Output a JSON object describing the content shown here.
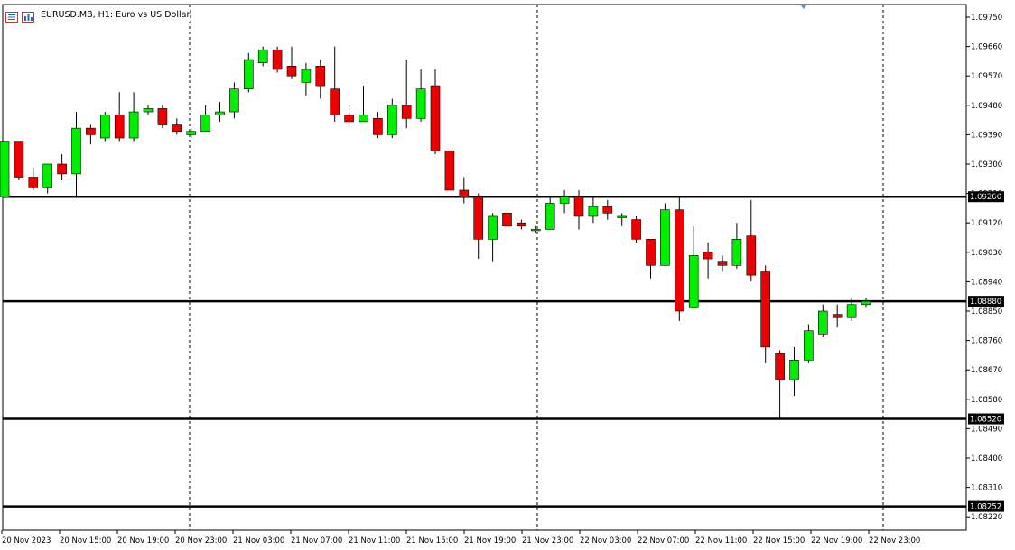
{
  "header": {
    "symbol": "EURUSD.MB, H1:",
    "description": "Euro vs US Dollar"
  },
  "chart_data": {
    "type": "candlestick",
    "symbol": "EURUSD.MB",
    "timeframe": "H1",
    "ylim": [
      1.0816,
      1.0982
    ],
    "y_ticks": [
      "1.09750",
      "1.09660",
      "1.09570",
      "1.09480",
      "1.09390",
      "1.09300",
      "1.09210",
      "1.09120",
      "1.09030",
      "1.08940",
      "1.08850",
      "1.08760",
      "1.08670",
      "1.08580",
      "1.08490",
      "1.08400",
      "1.08310",
      "1.08220"
    ],
    "x_ticks": [
      "20 Nov 2023",
      "20 Nov 15:00",
      "20 Nov 19:00",
      "20 Nov 23:00",
      "21 Nov 03:00",
      "21 Nov 07:00",
      "21 Nov 11:00",
      "21 Nov 15:00",
      "21 Nov 19:00",
      "21 Nov 23:00",
      "22 Nov 03:00",
      "22 Nov 07:00",
      "22 Nov 11:00",
      "22 Nov 15:00",
      "22 Nov 19:00",
      "22 Nov 23:00"
    ],
    "horizontal_levels": [
      {
        "value": 1.092,
        "label": "1.09200"
      },
      {
        "value": 1.0888,
        "label": "1.08880"
      },
      {
        "value": 1.0852,
        "label": "1.08520"
      },
      {
        "value": 1.08252,
        "label": "1.08252"
      }
    ],
    "colors": {
      "bull": "#00ee00",
      "bear": "#ee0000",
      "outline": "#000000",
      "level_line": "#000000"
    },
    "candles": [
      {
        "o": 1.092,
        "h": 1.0937,
        "l": 1.092,
        "c": 1.0937
      },
      {
        "o": 1.0937,
        "h": 1.0937,
        "l": 1.0925,
        "c": 1.0926
      },
      {
        "o": 1.0926,
        "h": 1.0929,
        "l": 1.0922,
        "c": 1.0923
      },
      {
        "o": 1.0923,
        "h": 1.093,
        "l": 1.0921,
        "c": 1.093
      },
      {
        "o": 1.093,
        "h": 1.0933,
        "l": 1.0925,
        "c": 1.0927
      },
      {
        "o": 1.0927,
        "h": 1.0946,
        "l": 1.092,
        "c": 1.0941
      },
      {
        "o": 1.0941,
        "h": 1.0942,
        "l": 1.0936,
        "c": 1.0939
      },
      {
        "o": 1.0938,
        "h": 1.0946,
        "l": 1.0937,
        "c": 1.0945
      },
      {
        "o": 1.0945,
        "h": 1.0952,
        "l": 1.0937,
        "c": 1.0938
      },
      {
        "o": 1.0938,
        "h": 1.0952,
        "l": 1.0937,
        "c": 1.0946
      },
      {
        "o": 1.0946,
        "h": 1.0948,
        "l": 1.0945,
        "c": 1.0947
      },
      {
        "o": 1.0947,
        "h": 1.0948,
        "l": 1.0941,
        "c": 1.0942
      },
      {
        "o": 1.0942,
        "h": 1.0944,
        "l": 1.0939,
        "c": 1.094
      },
      {
        "o": 1.0939,
        "h": 1.0941,
        "l": 1.0938,
        "c": 1.094
      },
      {
        "o": 1.094,
        "h": 1.0948,
        "l": 1.094,
        "c": 1.0945
      },
      {
        "o": 1.0945,
        "h": 1.0949,
        "l": 1.0943,
        "c": 1.0946
      },
      {
        "o": 1.0946,
        "h": 1.0955,
        "l": 1.0944,
        "c": 1.0953
      },
      {
        "o": 1.0953,
        "h": 1.0964,
        "l": 1.0952,
        "c": 1.0962
      },
      {
        "o": 1.0961,
        "h": 1.0966,
        "l": 1.096,
        "c": 1.0965
      },
      {
        "o": 1.0965,
        "h": 1.0966,
        "l": 1.0958,
        "c": 1.0959
      },
      {
        "o": 1.096,
        "h": 1.0966,
        "l": 1.0956,
        "c": 1.0957
      },
      {
        "o": 1.0955,
        "h": 1.0961,
        "l": 1.0951,
        "c": 1.0959
      },
      {
        "o": 1.096,
        "h": 1.0962,
        "l": 1.095,
        "c": 1.0954
      },
      {
        "o": 1.0953,
        "h": 1.0966,
        "l": 1.0943,
        "c": 1.0945
      },
      {
        "o": 1.0945,
        "h": 1.0948,
        "l": 1.0941,
        "c": 1.0943
      },
      {
        "o": 1.0943,
        "h": 1.0954,
        "l": 1.0943,
        "c": 1.0945
      },
      {
        "o": 1.0944,
        "h": 1.0946,
        "l": 1.0938,
        "c": 1.0939
      },
      {
        "o": 1.0939,
        "h": 1.095,
        "l": 1.0938,
        "c": 1.0948
      },
      {
        "o": 1.0948,
        "h": 1.0962,
        "l": 1.0941,
        "c": 1.0944
      },
      {
        "o": 1.0944,
        "h": 1.0959,
        "l": 1.0943,
        "c": 1.0953
      },
      {
        "o": 1.0954,
        "h": 1.0959,
        "l": 1.0933,
        "c": 1.0934
      },
      {
        "o": 1.0934,
        "h": 1.0934,
        "l": 1.0922,
        "c": 1.0922
      },
      {
        "o": 1.0922,
        "h": 1.0926,
        "l": 1.0918,
        "c": 1.092
      },
      {
        "o": 1.092,
        "h": 1.0921,
        "l": 1.0901,
        "c": 1.0907
      },
      {
        "o": 1.0907,
        "h": 1.0915,
        "l": 1.09,
        "c": 1.0914
      },
      {
        "o": 1.0915,
        "h": 1.0916,
        "l": 1.091,
        "c": 1.0911
      },
      {
        "o": 1.0912,
        "h": 1.0913,
        "l": 1.091,
        "c": 1.0911
      },
      {
        "o": 1.091,
        "h": 1.0911,
        "l": 1.0909,
        "c": 1.091
      },
      {
        "o": 1.091,
        "h": 1.092,
        "l": 1.091,
        "c": 1.0918
      },
      {
        "o": 1.0918,
        "h": 1.0922,
        "l": 1.0915,
        "c": 1.092
      },
      {
        "o": 1.092,
        "h": 1.0922,
        "l": 1.091,
        "c": 1.0914
      },
      {
        "o": 1.0914,
        "h": 1.092,
        "l": 1.0912,
        "c": 1.0917
      },
      {
        "o": 1.0917,
        "h": 1.0919,
        "l": 1.0913,
        "c": 1.0915
      },
      {
        "o": 1.0914,
        "h": 1.0915,
        "l": 1.0911,
        "c": 1.0914
      },
      {
        "o": 1.0913,
        "h": 1.0914,
        "l": 1.0906,
        "c": 1.0907
      },
      {
        "o": 1.0907,
        "h": 1.0907,
        "l": 1.0895,
        "c": 1.0899
      },
      {
        "o": 1.0899,
        "h": 1.0918,
        "l": 1.0899,
        "c": 1.0916
      },
      {
        "o": 1.0916,
        "h": 1.092,
        "l": 1.0882,
        "c": 1.0885
      },
      {
        "o": 1.0886,
        "h": 1.0911,
        "l": 1.0886,
        "c": 1.0902
      },
      {
        "o": 1.0903,
        "h": 1.0906,
        "l": 1.0895,
        "c": 1.0901
      },
      {
        "o": 1.09,
        "h": 1.0902,
        "l": 1.0897,
        "c": 1.0899
      },
      {
        "o": 1.0899,
        "h": 1.0912,
        "l": 1.0898,
        "c": 1.0907
      },
      {
        "o": 1.0908,
        "h": 1.0919,
        "l": 1.0894,
        "c": 1.0896
      },
      {
        "o": 1.0897,
        "h": 1.0899,
        "l": 1.0869,
        "c": 1.0874
      },
      {
        "o": 1.0872,
        "h": 1.0873,
        "l": 1.0852,
        "c": 1.0864
      },
      {
        "o": 1.0864,
        "h": 1.0874,
        "l": 1.0859,
        "c": 1.087
      },
      {
        "o": 1.087,
        "h": 1.0881,
        "l": 1.0869,
        "c": 1.0879
      },
      {
        "o": 1.0878,
        "h": 1.0887,
        "l": 1.0877,
        "c": 1.0885
      },
      {
        "o": 1.0884,
        "h": 1.0887,
        "l": 1.088,
        "c": 1.0883
      },
      {
        "o": 1.0883,
        "h": 1.0889,
        "l": 1.0882,
        "c": 1.0887
      },
      {
        "o": 1.0887,
        "h": 1.0889,
        "l": 1.0886,
        "c": 1.0888
      }
    ]
  }
}
